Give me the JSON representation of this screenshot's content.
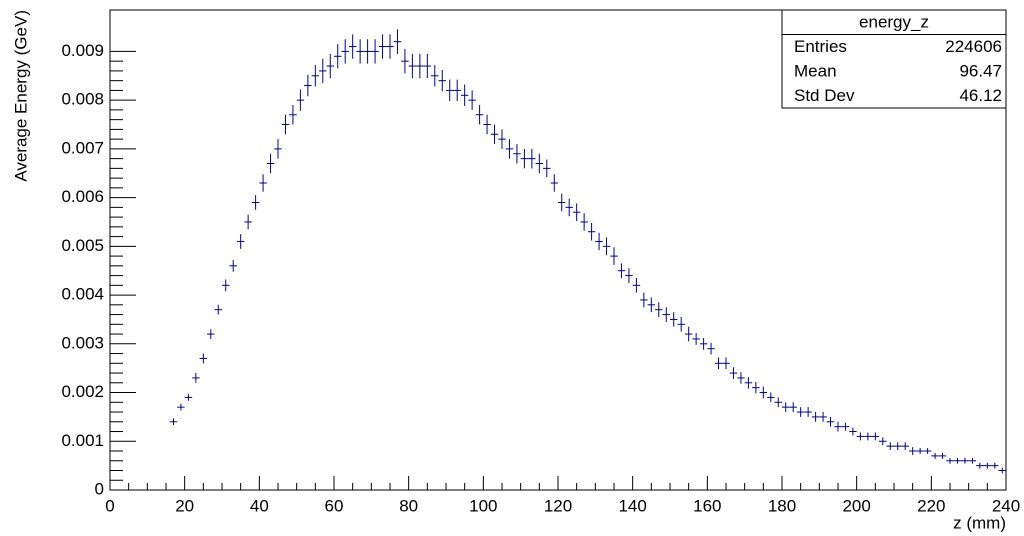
{
  "chart_data": {
    "type": "errorbar",
    "x_label": "z (mm)",
    "y_label": "Average Energy (GeV)",
    "color": "#000099",
    "xlim": [
      0,
      240
    ],
    "xticks": [
      0,
      20,
      40,
      60,
      80,
      100,
      120,
      140,
      160,
      180,
      200,
      220,
      240
    ],
    "ylim": [
      0,
      0.00985
    ],
    "yticks": [
      0,
      0.001,
      0.002,
      0.003,
      0.004,
      0.005,
      0.006,
      0.007,
      0.008,
      0.009
    ],
    "x": [
      17,
      19,
      21,
      23,
      25,
      27,
      29,
      31,
      33,
      35,
      37,
      39,
      41,
      43,
      45,
      47,
      49,
      51,
      53,
      55,
      57,
      59,
      61,
      63,
      65,
      67,
      69,
      71,
      73,
      75,
      77,
      79,
      81,
      83,
      85,
      87,
      89,
      91,
      93,
      95,
      97,
      99,
      101,
      103,
      105,
      107,
      109,
      111,
      113,
      115,
      117,
      119,
      121,
      123,
      125,
      127,
      129,
      131,
      133,
      135,
      137,
      139,
      141,
      143,
      145,
      147,
      149,
      151,
      153,
      155,
      157,
      159,
      161,
      163,
      165,
      167,
      169,
      171,
      173,
      175,
      177,
      179,
      181,
      183,
      185,
      187,
      189,
      191,
      193,
      195,
      197,
      199,
      201,
      203,
      205,
      207,
      209,
      211,
      213,
      215,
      217,
      219,
      221,
      223,
      225,
      227,
      229,
      231,
      233,
      235,
      237,
      239
    ],
    "values": [
      0.0014,
      0.0017,
      0.0019,
      0.0023,
      0.0027,
      0.0032,
      0.0037,
      0.0042,
      0.0046,
      0.0051,
      0.0055,
      0.0059,
      0.0063,
      0.0067,
      0.007,
      0.0075,
      0.0077,
      0.008,
      0.0083,
      0.0085,
      0.0086,
      0.0087,
      0.0089,
      0.009,
      0.0091,
      0.009,
      0.009,
      0.009,
      0.0091,
      0.0091,
      0.0092,
      0.0088,
      0.0087,
      0.0087,
      0.0087,
      0.0085,
      0.0084,
      0.0082,
      0.0082,
      0.0081,
      0.008,
      0.0077,
      0.0075,
      0.0073,
      0.0072,
      0.007,
      0.0069,
      0.0068,
      0.0068,
      0.0067,
      0.0066,
      0.0063,
      0.0059,
      0.0058,
      0.0057,
      0.0055,
      0.0053,
      0.0051,
      0.005,
      0.0048,
      0.0045,
      0.0044,
      0.0042,
      0.0039,
      0.0038,
      0.0037,
      0.0036,
      0.0035,
      0.0034,
      0.0032,
      0.0031,
      0.003,
      0.0029,
      0.0026,
      0.0026,
      0.0024,
      0.0023,
      0.0022,
      0.0021,
      0.002,
      0.0019,
      0.0018,
      0.0017,
      0.0017,
      0.0016,
      0.0016,
      0.0015,
      0.0015,
      0.0014,
      0.0013,
      0.0013,
      0.0012,
      0.0011,
      0.0011,
      0.0011,
      0.001,
      0.0009,
      0.0009,
      0.0009,
      0.0008,
      0.0008,
      0.0008,
      0.0007,
      0.0007,
      0.0006,
      0.0006,
      0.0006,
      0.0006,
      0.0005,
      0.0005,
      0.0005,
      0.0004
    ],
    "errors": [
      7e-05,
      7e-05,
      7e-05,
      0.0001,
      0.0001,
      0.0001,
      0.0001,
      0.00012,
      0.00012,
      0.00015,
      0.00015,
      0.00015,
      0.00018,
      0.0002,
      0.0002,
      0.0002,
      0.0002,
      0.00022,
      0.00022,
      0.00022,
      0.00025,
      0.00025,
      0.00025,
      0.00025,
      0.00025,
      0.00025,
      0.00025,
      0.00025,
      0.00025,
      0.00025,
      0.00025,
      0.00025,
      0.00025,
      0.00025,
      0.00025,
      0.00022,
      0.00022,
      0.00022,
      0.00022,
      0.00022,
      0.0002,
      0.0002,
      0.0002,
      0.0002,
      0.0002,
      0.0002,
      0.0002,
      0.0002,
      0.0002,
      0.0002,
      0.00018,
      0.00018,
      0.00018,
      0.00018,
      0.00018,
      0.00018,
      0.00018,
      0.00018,
      0.00018,
      0.00018,
      0.00015,
      0.00015,
      0.00015,
      0.00015,
      0.00015,
      0.00015,
      0.00015,
      0.00015,
      0.00015,
      0.00015,
      0.00012,
      0.00012,
      0.00012,
      0.00012,
      0.00012,
      0.00012,
      0.00012,
      0.00012,
      0.00012,
      0.00012,
      0.0001,
      0.0001,
      0.0001,
      0.0001,
      0.0001,
      0.0001,
      0.0001,
      0.0001,
      0.0001,
      0.0001,
      8e-05,
      8e-05,
      8e-05,
      8e-05,
      8e-05,
      8e-05,
      8e-05,
      8e-05,
      8e-05,
      8e-05,
      6e-05,
      6e-05,
      6e-05,
      6e-05,
      6e-05,
      6e-05,
      6e-05,
      6e-05,
      6e-05,
      6e-05,
      6e-05,
      6e-05
    ],
    "stats": {
      "title": "energy_z",
      "rows": [
        [
          "Entries",
          "224606"
        ],
        [
          "Mean",
          "96.47"
        ],
        [
          "Std Dev",
          "46.12"
        ]
      ]
    }
  }
}
